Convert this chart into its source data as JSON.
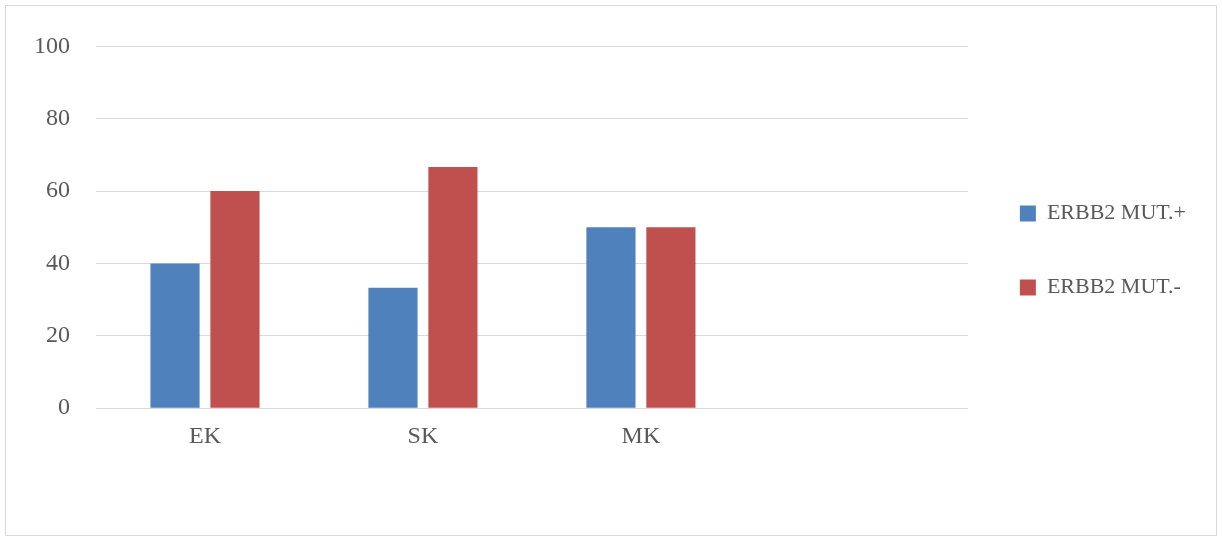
{
  "chart_data": {
    "type": "bar",
    "categories": [
      "EK",
      "SK",
      "MK",
      null
    ],
    "series": [
      {
        "name": "ERBB2 MUT.+",
        "color": "#4f81bd",
        "values": [
          40,
          33.3,
          50,
          null
        ]
      },
      {
        "name": "ERBB2 MUT.-",
        "color": "#c0504d",
        "values": [
          60,
          66.7,
          50,
          null
        ]
      }
    ],
    "ylim": [
      0,
      100
    ],
    "yticks": [
      0,
      20,
      40,
      60,
      80,
      100
    ],
    "grid": "y",
    "legend": "right"
  }
}
